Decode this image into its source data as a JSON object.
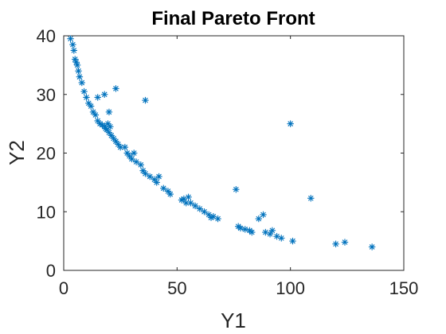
{
  "chart_data": {
    "type": "scatter",
    "title": "Final Pareto Front",
    "xlabel": "Y1",
    "ylabel": "Y2",
    "xlim": [
      0,
      150
    ],
    "ylim": [
      0,
      40
    ],
    "xticks": [
      0,
      50,
      100,
      150
    ],
    "yticks": [
      0,
      10,
      20,
      30,
      40
    ],
    "xtick_labels": [
      "0",
      "50",
      "100",
      "150"
    ],
    "ytick_labels": [
      "0",
      "10",
      "20",
      "30",
      "40"
    ],
    "grid": false,
    "marker": "asterisk",
    "color": "#0072BD",
    "series": [
      {
        "x": [
          3,
          4,
          4.5,
          5,
          5.5,
          6,
          6.5,
          7,
          8,
          9,
          10,
          11,
          12,
          13,
          14,
          15,
          16,
          17,
          18,
          18.5,
          19,
          19.5,
          20,
          20.5,
          21,
          22,
          23,
          24,
          25,
          27,
          28,
          29,
          30,
          31,
          32,
          34,
          35,
          36,
          38,
          40,
          41,
          42,
          44,
          46,
          47,
          52,
          53,
          54,
          55,
          56,
          58,
          60,
          62,
          64,
          65,
          66,
          68,
          76,
          77,
          78,
          80,
          82,
          83,
          86,
          88,
          89,
          91,
          92,
          94,
          96,
          101,
          120,
          124,
          136,
          100,
          109,
          36,
          23,
          18,
          15,
          20
        ],
        "y": [
          39.5,
          38.5,
          37.5,
          36,
          35.5,
          35,
          34,
          33,
          32,
          30.5,
          29.5,
          28.5,
          28,
          27,
          26.5,
          25.5,
          25,
          24.8,
          24.5,
          24.2,
          24,
          25,
          23.5,
          24.5,
          23,
          22.5,
          22,
          21.5,
          21,
          21,
          20,
          19.5,
          19,
          20,
          18.5,
          18,
          17,
          16.5,
          16,
          15.5,
          15,
          16,
          14,
          13.5,
          13,
          12,
          12.2,
          11.5,
          12.5,
          11.5,
          11,
          10.5,
          10,
          9.5,
          9,
          9.2,
          8.8,
          13.8,
          7.5,
          7.2,
          7,
          6.8,
          6.5,
          8.8,
          9.5,
          6.5,
          6.2,
          6.8,
          5.8,
          5.5,
          5,
          4.5,
          4.8,
          4,
          25,
          12.3,
          29,
          31,
          30,
          29.5,
          27
        ]
      }
    ]
  }
}
